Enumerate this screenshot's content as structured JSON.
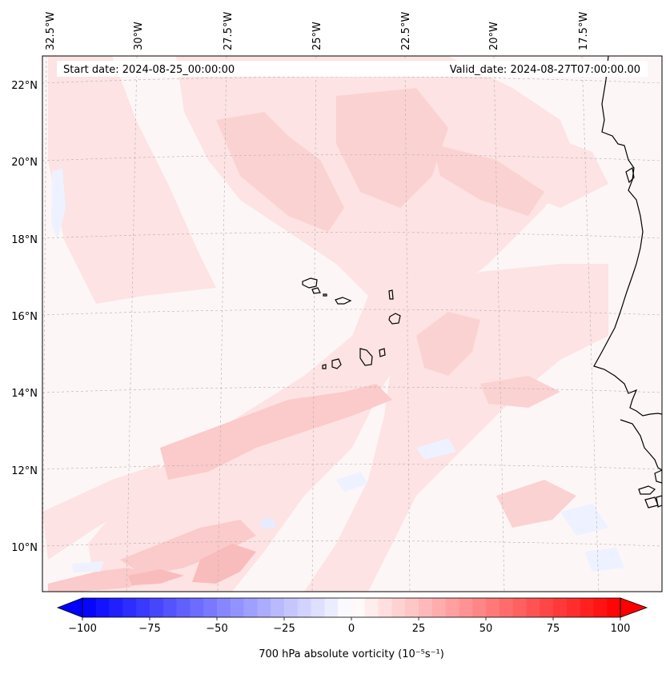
{
  "map": {
    "start_date": "Start date: 2024-08-25_00:00:00",
    "valid_date": "Valid_date: 2024-08-27T07:00:00.00",
    "lon_labels": [
      "32.5°W",
      "30°W",
      "27.5°W",
      "25°W",
      "22.5°W",
      "20°W",
      "17.5°W"
    ],
    "lat_labels": [
      "22°N",
      "20°N",
      "18°N",
      "16°N",
      "14°N",
      "12°N",
      "10°N"
    ],
    "field_colors": {
      "background": "#fdf6f6",
      "positive_light": "#fde3e3",
      "positive_medium": "#fbcaca",
      "positive_strong": "#f7b0b0",
      "negative_light": "#eef1ff"
    },
    "coastline_color": "#000000",
    "gridline_color": "#b0b0b0"
  },
  "colorbar": {
    "label": "700 hPa absolute vorticity (10⁻⁵s⁻¹)",
    "ticks": [
      "−100",
      "−75",
      "−50",
      "−25",
      "0",
      "25",
      "50",
      "75",
      "100"
    ],
    "range": [
      -100,
      100
    ],
    "step": 5,
    "colormap": "bwr",
    "extend": "both"
  }
}
